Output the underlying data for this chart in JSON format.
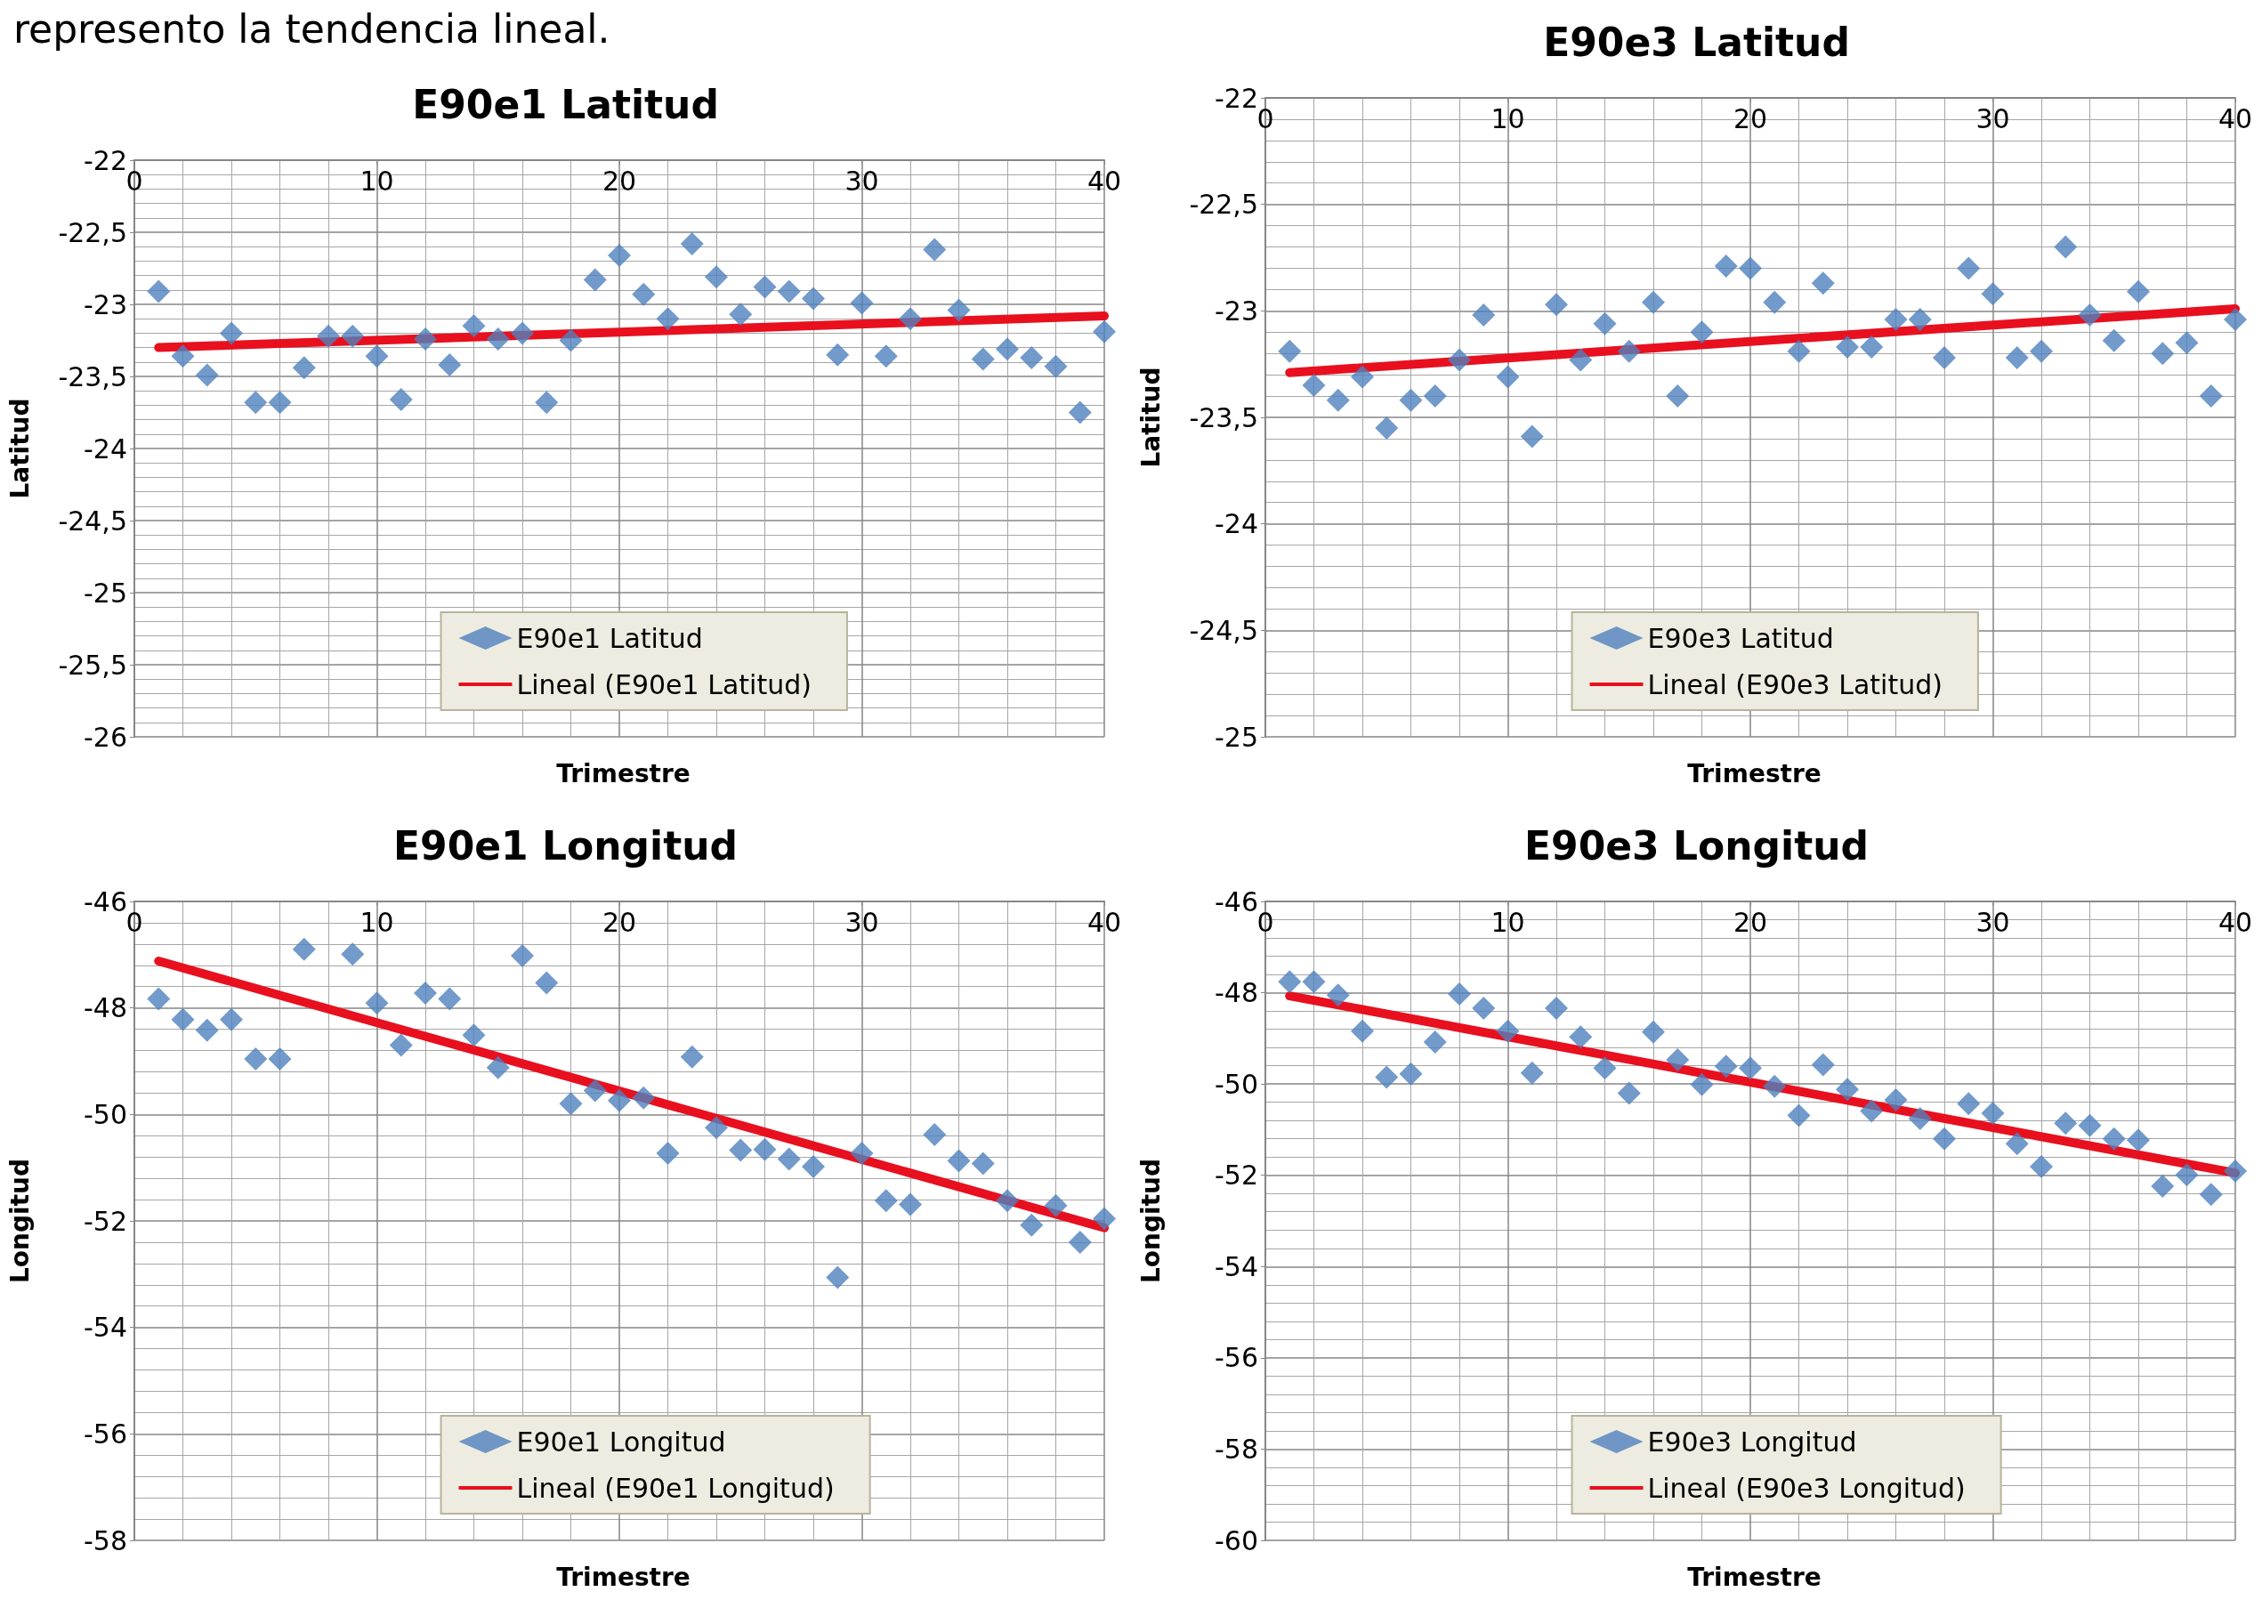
{
  "chart_data": [
    {
      "type": "scatter",
      "title": "E90e1 Latitud",
      "xlabel": "Trimestre",
      "ylabel": "Latitud",
      "annotations": [
        "represento la tendencia lineal."
      ],
      "xlim": [
        0,
        40
      ],
      "xticks": [
        0,
        10,
        20,
        30,
        40
      ],
      "ylim": [
        -26,
        -22
      ],
      "yticks": [
        -26,
        {
          "value": -25.5,
          "label": "-25,5"
        },
        -25,
        {
          "value": -24.5,
          "label": "-24,5"
        },
        -24,
        {
          "value": -23.5,
          "label": "-23,5"
        },
        -23,
        {
          "value": -22.5,
          "label": "-22,5"
        },
        -22
      ],
      "grid": true,
      "legend": "bottom",
      "series": [
        {
          "name": "E90e1 Latitud",
          "color": "#4f81bd",
          "marker": "diamond",
          "x": [
            1,
            2,
            3,
            4,
            5,
            6,
            7,
            8,
            9,
            10,
            11,
            12,
            13,
            14,
            15,
            16,
            17,
            18,
            19,
            20,
            21,
            22,
            23,
            24,
            25,
            26,
            27,
            28,
            29,
            30,
            31,
            32,
            33,
            34,
            35,
            36,
            37,
            38,
            39,
            40
          ],
          "values": [
            -22.91,
            -23.36,
            -23.49,
            -23.2,
            -23.68,
            -23.68,
            -23.44,
            -23.22,
            -23.22,
            -23.36,
            -23.66,
            -23.24,
            -23.42,
            -23.15,
            -23.24,
            -23.2,
            -23.68,
            -23.25,
            -22.83,
            -22.66,
            -22.93,
            -23.1,
            -22.58,
            -22.81,
            -23.07,
            -22.88,
            -22.91,
            -22.96,
            -23.35,
            -22.99,
            -23.36,
            -23.1,
            -22.62,
            -23.04,
            -23.38,
            -23.31,
            -23.37,
            -23.43,
            -23.75,
            -23.19
          ]
        },
        {
          "name": "Lineal (E90e1 Latitud)",
          "type": "line",
          "color": "#e8101e",
          "marker": "none",
          "x": [
            1,
            40
          ],
          "values": [
            -23.3,
            -23.08
          ]
        }
      ]
    },
    {
      "type": "scatter",
      "title": "E90e3 Latitud",
      "xlabel": "Trimestre",
      "ylabel": "Latitud",
      "xlim": [
        0,
        40
      ],
      "xticks": [
        0,
        10,
        20,
        30,
        40
      ],
      "ylim": [
        -25,
        -22
      ],
      "yticks": [
        -25,
        {
          "value": -24.5,
          "label": "-24,5"
        },
        -24,
        {
          "value": -23.5,
          "label": "-23,5"
        },
        -23,
        {
          "value": -22.5,
          "label": "-22,5"
        },
        -22
      ],
      "grid": true,
      "legend": "bottom",
      "series": [
        {
          "name": "E90e3 Latitud",
          "color": "#4f81bd",
          "marker": "diamond",
          "x": [
            1,
            2,
            3,
            4,
            5,
            6,
            7,
            8,
            9,
            10,
            11,
            12,
            13,
            14,
            15,
            16,
            17,
            18,
            19,
            20,
            21,
            22,
            23,
            24,
            25,
            26,
            27,
            28,
            29,
            30,
            31,
            32,
            33,
            34,
            35,
            36,
            37,
            38,
            39,
            40
          ],
          "values": [
            -23.19,
            -23.35,
            -23.42,
            -23.31,
            -23.55,
            -23.42,
            -23.4,
            -23.23,
            -23.02,
            -23.31,
            -23.59,
            -22.97,
            -23.23,
            -23.06,
            -23.19,
            -22.96,
            -23.4,
            -23.1,
            -22.79,
            -22.8,
            -22.96,
            -23.19,
            -22.87,
            -23.17,
            -23.17,
            -23.04,
            -23.04,
            -23.22,
            -22.8,
            -22.92,
            -23.22,
            -23.19,
            -22.7,
            -23.02,
            -23.14,
            -22.91,
            -23.2,
            -23.15,
            -23.4,
            -23.04
          ]
        },
        {
          "name": "Lineal (E90e3 Latitud)",
          "type": "line",
          "color": "#e8101e",
          "marker": "none",
          "x": [
            1,
            40
          ],
          "values": [
            -23.29,
            -22.99
          ]
        }
      ]
    },
    {
      "type": "scatter",
      "title": "E90e1 Longitud",
      "xlabel": "Trimestre",
      "ylabel": "Longitud",
      "xlim": [
        0,
        40
      ],
      "xticks": [
        0,
        10,
        20,
        30,
        40
      ],
      "ylim": [
        -58,
        -46
      ],
      "yticks": [
        -58,
        -56,
        -54,
        -52,
        -50,
        -48,
        -46
      ],
      "grid": true,
      "legend": "bottom",
      "series": [
        {
          "name": "E90e1 Longitud",
          "color": "#4f81bd",
          "marker": "diamond",
          "x": [
            1,
            2,
            3,
            4,
            5,
            6,
            7,
            9,
            10,
            11,
            12,
            13,
            14,
            15,
            16,
            17,
            18,
            19,
            20,
            21,
            22,
            23,
            24,
            25,
            26,
            27,
            28,
            29,
            30,
            31,
            32,
            33,
            34,
            35,
            36,
            37,
            38,
            39,
            40
          ],
          "values": [
            -47.83,
            -48.22,
            -48.42,
            -48.22,
            -48.96,
            -48.96,
            -46.9,
            -46.99,
            -47.91,
            -48.7,
            -47.72,
            -47.83,
            -48.51,
            -49.12,
            -47.02,
            -47.53,
            -49.8,
            -49.55,
            -49.74,
            -49.69,
            -50.73,
            -48.92,
            -50.25,
            -50.67,
            -50.66,
            -50.84,
            -50.98,
            -53.06,
            -50.73,
            -51.62,
            -51.69,
            -50.38,
            -50.87,
            -50.92,
            -51.62,
            -52.08,
            -51.71,
            -52.4,
            -51.96
          ]
        },
        {
          "name": "Lineal (E90e1 Longitud)",
          "type": "line",
          "color": "#e8101e",
          "marker": "none",
          "x": [
            1,
            40
          ],
          "values": [
            -47.12,
            -52.13
          ]
        }
      ]
    },
    {
      "type": "scatter",
      "title": "E90e3 Longitud",
      "xlabel": "Trimestre",
      "ylabel": "Longitud",
      "xlim": [
        0,
        40
      ],
      "xticks": [
        0,
        10,
        20,
        30,
        40
      ],
      "ylim": [
        -60,
        -46
      ],
      "yticks": [
        -60,
        -58,
        -56,
        -54,
        -52,
        -50,
        -48,
        -46
      ],
      "grid": true,
      "legend": "bottom",
      "series": [
        {
          "name": "E90e3 Longitud",
          "color": "#4f81bd",
          "marker": "diamond",
          "x": [
            1,
            2,
            3,
            4,
            5,
            6,
            7,
            8,
            9,
            10,
            11,
            12,
            13,
            14,
            15,
            16,
            17,
            18,
            19,
            20,
            21,
            22,
            23,
            24,
            25,
            26,
            27,
            28,
            29,
            30,
            31,
            32,
            33,
            34,
            35,
            36,
            37,
            38,
            39,
            40
          ],
          "values": [
            -47.76,
            -47.76,
            -48.05,
            -48.84,
            -49.85,
            -49.78,
            -49.08,
            -48.03,
            -48.34,
            -48.84,
            -49.76,
            -48.34,
            -48.97,
            -49.65,
            -50.2,
            -48.86,
            -49.47,
            -50.01,
            -49.61,
            -49.65,
            -50.05,
            -50.69,
            -49.58,
            -50.12,
            -50.59,
            -50.35,
            -50.76,
            -51.2,
            -50.43,
            -50.64,
            -51.31,
            -51.81,
            -50.86,
            -50.91,
            -51.2,
            -51.23,
            -52.24,
            -51.99,
            -52.42,
            -51.91
          ]
        },
        {
          "name": "Lineal (E90e3 Longitud)",
          "type": "line",
          "color": "#e8101e",
          "marker": "none",
          "x": [
            1,
            40
          ],
          "values": [
            -48.07,
            -51.95
          ]
        }
      ]
    }
  ]
}
